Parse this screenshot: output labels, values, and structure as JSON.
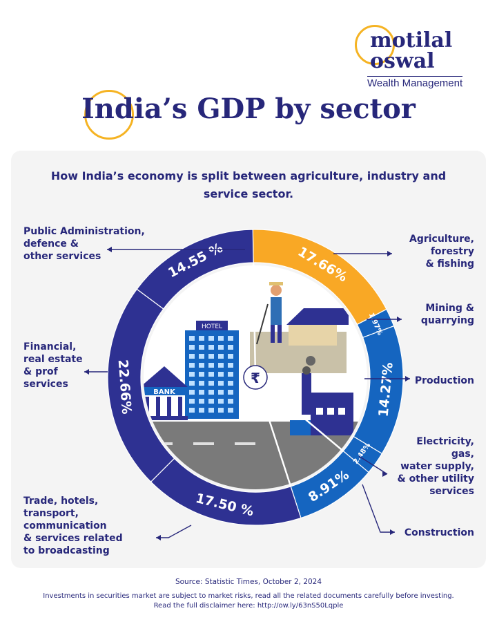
{
  "brand": {
    "name_line1": "motilal",
    "name_line2": "oswal",
    "tagline": "Wealth Management"
  },
  "title": "India’s GDP by sector",
  "subtitle": "How India’s economy is split between agriculture, industry and service sector.",
  "icons": {
    "center": "rupee-icon",
    "hotel_sign": "HOTEL",
    "bank_sign": "BANK",
    "center_symbol": "₹"
  },
  "chart_data": {
    "type": "pie",
    "style": "donut",
    "unit": "%",
    "slices": [
      {
        "label": "Agriculture, forestry & fishing",
        "value": 17.66,
        "display": "17.66%",
        "color": "#f9a825"
      },
      {
        "label": "Mining & quarrying",
        "value": 1.97,
        "display": "1.97%",
        "color": "#1565c0"
      },
      {
        "label": "Production",
        "value": 14.27,
        "display": "14.27%",
        "color": "#1565c0"
      },
      {
        "label": "Electricity, gas, water supply, & other utility services",
        "value": 2.48,
        "display": "2.48%",
        "color": "#1565c0"
      },
      {
        "label": "Construction",
        "value": 8.91,
        "display": "8.91%",
        "color": "#1565c0"
      },
      {
        "label": "Trade, hotels, transport, communication & services related to broadcasting",
        "value": 17.5,
        "display": "17.50 %",
        "color": "#2e3192"
      },
      {
        "label": "Financial, real estate & prof services",
        "value": 22.66,
        "display": "22.66%",
        "color": "#2e3192"
      },
      {
        "label": "Public Administration, defence & other services",
        "value": 14.55,
        "display": "14.55 %",
        "color": "#2e3192"
      }
    ]
  },
  "labels": {
    "agri": [
      "Agriculture,",
      "forestry",
      "& fishing"
    ],
    "mining": [
      "Mining &",
      "quarrying"
    ],
    "production": [
      "Production"
    ],
    "electricity": [
      "Electricity,",
      "gas,",
      "water supply,",
      "& other utility",
      "services"
    ],
    "construction": [
      "Construction"
    ],
    "trade": [
      "Trade, hotels,",
      "transport,",
      "communication",
      "& services related",
      "to broadcasting"
    ],
    "financial": [
      "Financial,",
      "real estate",
      "& prof",
      "services"
    ],
    "public": [
      "Public Administration,",
      "defence &",
      "other services"
    ]
  },
  "footer": {
    "source": "Source: Statistic Times, October 2, 2024",
    "disclaimer_line1": "Investments in securities market are subject to market risks, read all the related documents carefully before investing.",
    "disclaimer_line2": "Read the full disclaimer here:  http://ow.ly/63nS50Lqple"
  }
}
